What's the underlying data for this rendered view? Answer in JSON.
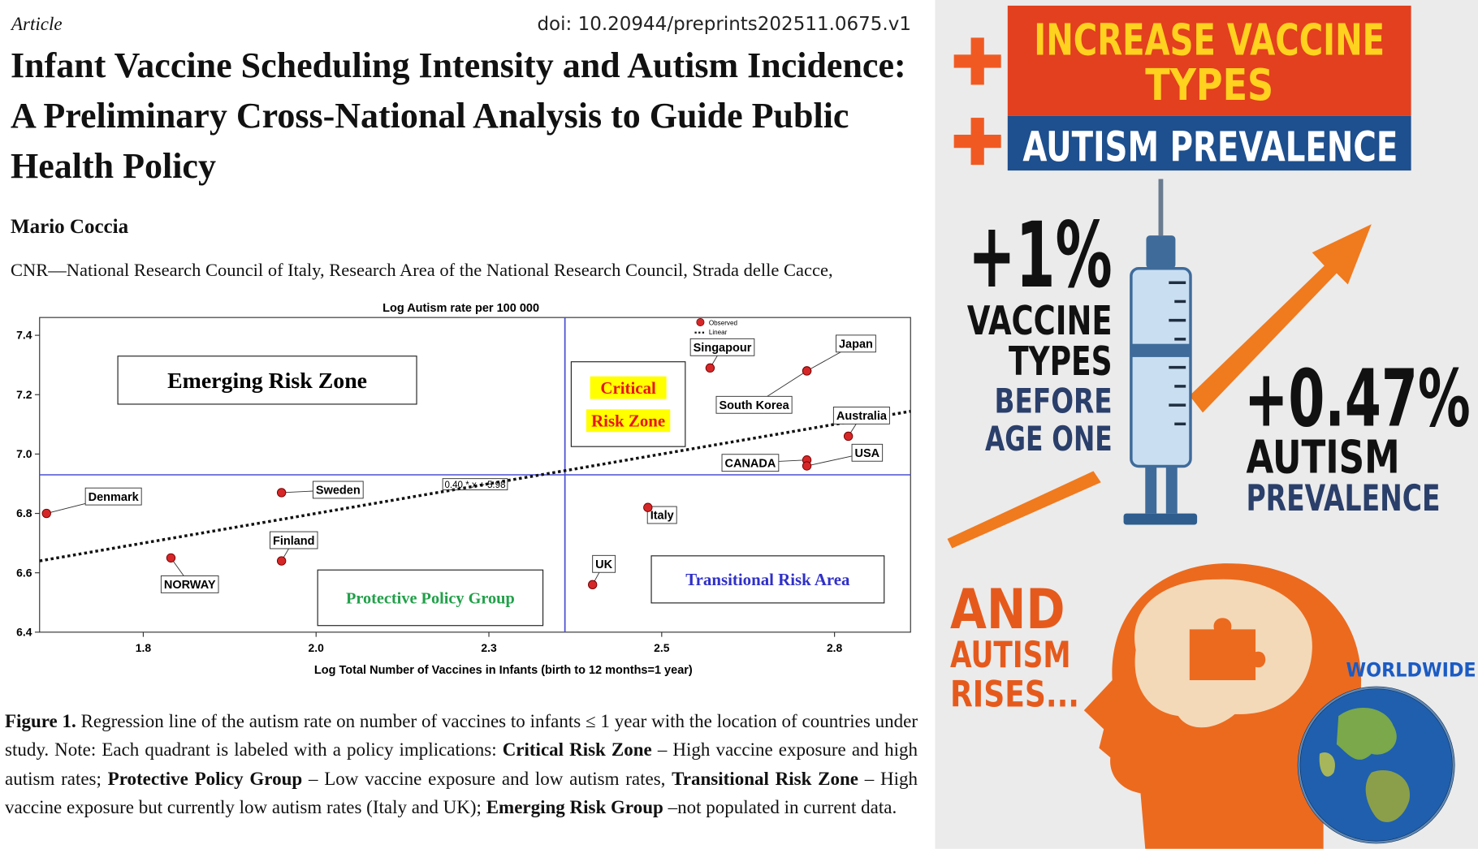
{
  "header": {
    "article_type": "Article",
    "doi": "doi: 10.20944/preprints202511.0675.v1",
    "title": "Infant Vaccine Scheduling Intensity and Autism Incidence: A Preliminary Cross-National Analysis to Guide Public Health Policy",
    "author": "Mario Coccia",
    "affiliation": "CNR—National Research Council of Italy, Research Area of the National Research Council, Strada delle Cacce,"
  },
  "chart_data": {
    "type": "scatter",
    "title": "Log Autism rate per 100 000",
    "x_label": "Log Total Number of Vaccines in Infants (birth to 12 months=1 year)",
    "series": [
      {
        "name": "Observed",
        "color": "#d62728",
        "labels": [
          "Denmark",
          "NORWAY",
          "Sweden",
          "Finland",
          "Singapour",
          "Japan",
          "South Korea",
          "Australia",
          "CANADA",
          "USA",
          "Italy",
          "UK"
        ],
        "x": [
          1.66,
          1.84,
          2.0,
          2.0,
          2.62,
          2.76,
          2.76,
          2.82,
          2.76,
          2.76,
          2.53,
          2.45
        ],
        "values": [
          6.8,
          6.65,
          6.87,
          6.64,
          7.29,
          7.28,
          7.28,
          7.06,
          6.98,
          6.96,
          6.82,
          6.56
        ]
      }
    ],
    "fit": {
      "name": "Linear",
      "slope": 0.4,
      "intercept": 5.98,
      "label": "0.40 * x + 5.98"
    },
    "reference_lines": {
      "x": 2.41,
      "y": 6.93
    },
    "zones": [
      {
        "lines": [
          "Emerging Risk Zone"
        ],
        "color": "#000000"
      },
      {
        "lines": [
          "Critical",
          "Risk Zone"
        ],
        "color": "#e8141c",
        "highlight": "#ffff00"
      },
      {
        "lines": [
          "Protective Policy Group"
        ],
        "color": "#22a04a"
      },
      {
        "lines": [
          "Transitional Risk Area"
        ],
        "color": "#3030c8"
      }
    ],
    "xlim": [
      1.65,
      2.91
    ],
    "ylim": [
      6.4,
      7.46
    ],
    "xticks": [
      1.8,
      {
        "value": 2.05,
        "label": "2.0"
      },
      2.3,
      {
        "value": 2.55,
        "label": "2.5"
      },
      2.8
    ],
    "yticks": [
      6.4,
      6.6,
      6.8,
      {
        "value": 7,
        "label": "7.0"
      },
      7.2,
      7.4
    ]
  },
  "caption": [
    {
      "text": "Figure 1.",
      "bold": true
    },
    {
      "text": " Regression line of the autism rate on  number of vaccines to infants ≤ 1 year with the location of countries under study. Note: Each quadrant is labeled with a policy implications: ",
      "bold": false
    },
    {
      "text": "Critical Risk Zone",
      "bold": true
    },
    {
      "text": " – High vaccine exposure and high autism rates; ",
      "bold": false
    },
    {
      "text": "Protective Policy Group",
      "bold": true
    },
    {
      "text": " – Low vaccine exposure and low autism rates, ",
      "bold": false
    },
    {
      "text": "Transitional Risk Zone",
      "bold": true
    },
    {
      "text": " – High vaccine exposure but currently low autism rates (Italy and UK); ",
      "bold": false
    },
    {
      "text": "Emerging Risk Group",
      "bold": true
    },
    {
      "text": " –not populated in current data.",
      "bold": false
    }
  ],
  "infographic": {
    "banner_top": [
      "INCREASE VACCINE",
      "TYPES"
    ],
    "banner_bottom": "AUTISM PREVALENCE",
    "left_stat": {
      "value_label": "+1%",
      "lines": [
        "VACCINE",
        "TYPES"
      ],
      "sub_lines": [
        "BEFORE",
        "AGE ONE"
      ]
    },
    "right_stat": {
      "value_label": "+0.47%",
      "line": "AUTISM",
      "sub_line": "PREVALENCE"
    },
    "rises": [
      "AND",
      "AUTISM",
      "RISES..."
    ],
    "worldwide": "WORLDWIDE"
  }
}
